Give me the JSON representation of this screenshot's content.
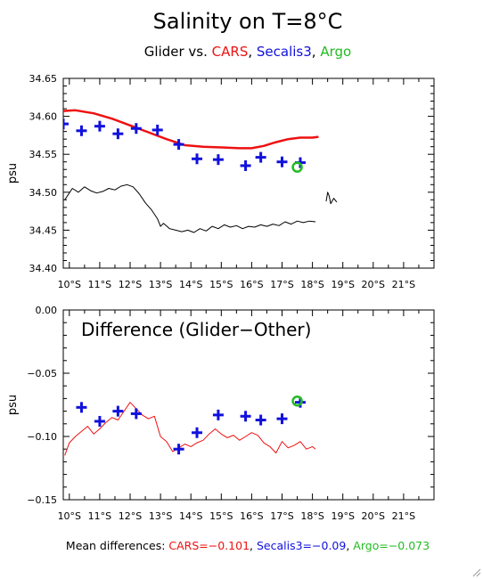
{
  "title": "Salinity on T=8°C",
  "subtitle": {
    "prefix": "Glider vs. ",
    "cars": "CARS",
    "sep1": ", ",
    "secalis": "Secalis3",
    "sep2": ", ",
    "argo": "Argo"
  },
  "footer": {
    "prefix": "Mean differences: ",
    "cars": "CARS=−0.101",
    "sep1": ", ",
    "secalis": "Secalis3=−0.09",
    "sep2": ", ",
    "argo": "Argo=−0.073"
  },
  "colors": {
    "cars": "#ee1111",
    "secalis": "#1111dd",
    "argo": "#22bb22",
    "glider": "#000000",
    "axis": "#000000"
  },
  "icons": {
    "resize": "resize-grip-icon"
  },
  "chart_data": [
    {
      "type": "line",
      "ylabel": "psu",
      "xlim": [
        9.8,
        22.0
      ],
      "ylim": [
        34.4,
        34.65
      ],
      "yticks": [
        34.4,
        34.45,
        34.5,
        34.55,
        34.6,
        34.65
      ],
      "ytick_labels": [
        "34.40",
        "34.45",
        "34.50",
        "34.55",
        "34.60",
        "34.65"
      ],
      "xticks": [
        10,
        11,
        12,
        13,
        14,
        15,
        16,
        17,
        18,
        19,
        20,
        21
      ],
      "xtick_labels": [
        "10°S",
        "11°S",
        "12°S",
        "13°S",
        "14°S",
        "15°S",
        "16°S",
        "17°S",
        "18°S",
        "19°S",
        "20°S",
        "21°S"
      ],
      "grid": false,
      "series": [
        {
          "name": "CARS",
          "role": "cars",
          "style": "thick-line",
          "x": [
            9.8,
            10.2,
            10.8,
            11.4,
            12.0,
            12.6,
            13.2,
            13.8,
            14.4,
            15.0,
            15.6,
            16.0,
            16.4,
            16.8,
            17.2,
            17.6,
            18.0,
            18.2
          ],
          "y": [
            34.607,
            34.608,
            34.604,
            34.597,
            34.588,
            34.579,
            34.57,
            34.562,
            34.56,
            34.559,
            34.558,
            34.558,
            34.561,
            34.566,
            34.57,
            34.572,
            34.572,
            34.573
          ]
        },
        {
          "name": "Secalis3",
          "role": "secalis",
          "style": "plus",
          "x": [
            9.8,
            10.4,
            11.0,
            11.6,
            12.2,
            12.9,
            13.6,
            14.2,
            14.9,
            15.8,
            16.3,
            17.0,
            17.6
          ],
          "y": [
            34.59,
            34.581,
            34.587,
            34.577,
            34.584,
            34.582,
            34.563,
            34.544,
            34.543,
            34.535,
            34.546,
            34.54,
            34.539
          ]
        },
        {
          "name": "Argo",
          "role": "argo",
          "style": "circle",
          "x": [
            17.5
          ],
          "y": [
            34.533
          ]
        },
        {
          "name": "Glider",
          "role": "glider",
          "style": "thin-noisy-line",
          "segments": [
            {
              "x": [
                9.85,
                10.1,
                10.3,
                10.5,
                10.7,
                10.9,
                11.1,
                11.3,
                11.5,
                11.7,
                11.9,
                12.1,
                12.3,
                12.5,
                12.7,
                12.9,
                13.0,
                13.1,
                13.3,
                13.5,
                13.7,
                13.9,
                14.1,
                14.3,
                14.5,
                14.7,
                14.9,
                15.1,
                15.3,
                15.5,
                15.7,
                15.9,
                16.1,
                16.3,
                16.5,
                16.7,
                16.9,
                17.1,
                17.3,
                17.5,
                17.7,
                17.9,
                18.1
              ],
              "y": [
                34.49,
                34.505,
                34.5,
                34.507,
                34.502,
                34.499,
                34.501,
                34.505,
                34.503,
                34.508,
                34.51,
                34.507,
                34.498,
                34.486,
                34.477,
                34.465,
                34.455,
                34.459,
                34.452,
                34.45,
                34.448,
                34.45,
                34.447,
                34.452,
                34.449,
                34.455,
                34.452,
                34.457,
                34.454,
                34.456,
                34.452,
                34.455,
                34.454,
                34.457,
                34.455,
                34.458,
                34.456,
                34.461,
                34.458,
                34.462,
                34.46,
                34.462,
                34.461
              ]
            },
            {
              "x": [
                18.45,
                18.5,
                18.55,
                18.6,
                18.7,
                18.8
              ],
              "y": [
                34.488,
                34.5,
                34.495,
                34.485,
                34.492,
                34.487
              ]
            }
          ]
        }
      ]
    },
    {
      "type": "line",
      "title": "Difference (Glider−Other)",
      "ylabel": "psu",
      "xlim": [
        9.8,
        22.0
      ],
      "ylim": [
        -0.15,
        0.0
      ],
      "yticks": [
        -0.15,
        -0.1,
        -0.05,
        0.0
      ],
      "ytick_labels": [
        "−0.15",
        "−0.10",
        "−0.05",
        "0.00"
      ],
      "xticks": [
        10,
        11,
        12,
        13,
        14,
        15,
        16,
        17,
        18,
        19,
        20,
        21
      ],
      "xtick_labels": [
        "10°S",
        "11°S",
        "12°S",
        "13°S",
        "14°S",
        "15°S",
        "16°S",
        "17°S",
        "18°S",
        "19°S",
        "20°S",
        "21°S"
      ],
      "grid": false,
      "series": [
        {
          "name": "CARS",
          "role": "cars",
          "style": "thin-noisy-line",
          "x": [
            9.85,
            10.0,
            10.2,
            10.4,
            10.6,
            10.8,
            11.0,
            11.2,
            11.4,
            11.6,
            11.8,
            12.0,
            12.2,
            12.4,
            12.6,
            12.8,
            13.0,
            13.2,
            13.4,
            13.6,
            13.8,
            14.0,
            14.2,
            14.4,
            14.6,
            14.8,
            15.0,
            15.2,
            15.4,
            15.6,
            15.8,
            16.0,
            16.2,
            16.4,
            16.6,
            16.8,
            17.0,
            17.2,
            17.4,
            17.6,
            17.8,
            18.0,
            18.1
          ],
          "y": [
            -0.115,
            -0.105,
            -0.1,
            -0.096,
            -0.092,
            -0.098,
            -0.094,
            -0.089,
            -0.085,
            -0.087,
            -0.08,
            -0.073,
            -0.078,
            -0.083,
            -0.086,
            -0.084,
            -0.1,
            -0.104,
            -0.112,
            -0.109,
            -0.106,
            -0.108,
            -0.105,
            -0.103,
            -0.098,
            -0.094,
            -0.098,
            -0.101,
            -0.099,
            -0.103,
            -0.1,
            -0.097,
            -0.099,
            -0.105,
            -0.108,
            -0.113,
            -0.104,
            -0.109,
            -0.107,
            -0.104,
            -0.11,
            -0.108,
            -0.11
          ]
        },
        {
          "name": "Secalis3",
          "role": "secalis",
          "style": "plus",
          "x": [
            10.4,
            11.0,
            11.6,
            12.2,
            13.6,
            14.2,
            14.9,
            15.8,
            16.3,
            17.0,
            17.6
          ],
          "y": [
            -0.077,
            -0.088,
            -0.08,
            -0.082,
            -0.11,
            -0.097,
            -0.083,
            -0.084,
            -0.087,
            -0.086,
            -0.073
          ]
        },
        {
          "name": "Argo",
          "role": "argo",
          "style": "circle",
          "x": [
            17.5
          ],
          "y": [
            -0.072
          ]
        }
      ]
    }
  ]
}
